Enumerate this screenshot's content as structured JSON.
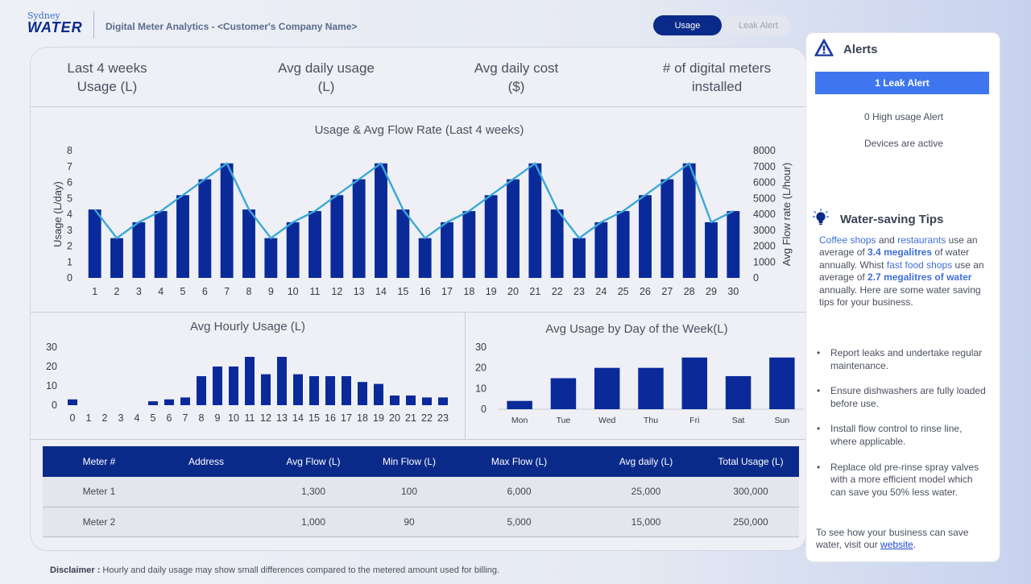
{
  "header": {
    "logo_small": "Sydney",
    "logo_main": "WATER",
    "title": "Digital Meter Analytics - <Customer's Company Name>",
    "tabs": [
      {
        "label": "Usage",
        "active": true
      },
      {
        "label": "Leak Alert",
        "active": false
      }
    ]
  },
  "kpis": [
    {
      "line1": "Last 4 weeks",
      "line2": "Usage (L)"
    },
    {
      "line1": "Avg daily usage",
      "line2": "(L)"
    },
    {
      "line1": "Avg daily cost",
      "line2": "($)"
    },
    {
      "line1": "# of digital meters",
      "line2": "installed"
    }
  ],
  "chart_data": [
    {
      "type": "bar",
      "title": "Usage & Avg Flow Rate (Last 4 weeks)",
      "xlabel": "",
      "ylabel": "Usage (L/day)",
      "y2label": "Avg Flow rate (L/hour)",
      "ylim": [
        0,
        8
      ],
      "y2lim": [
        0,
        8000
      ],
      "yticks": [
        0,
        1,
        2,
        3,
        4,
        5,
        6,
        7,
        8
      ],
      "y2ticks": [
        0,
        1000,
        2000,
        3000,
        4000,
        5000,
        6000,
        7000,
        8000
      ],
      "categories": [
        "1",
        "2",
        "3",
        "4",
        "5",
        "6",
        "7",
        "8",
        "9",
        "10",
        "11",
        "12",
        "13",
        "14",
        "15",
        "16",
        "17",
        "18",
        "19",
        "20",
        "21",
        "22",
        "23",
        "24",
        "25",
        "26",
        "27",
        "28",
        "29",
        "30"
      ],
      "series": [
        {
          "name": "Usage (L/day)",
          "type": "bar",
          "color": "#0a2a9a",
          "values": [
            4.3,
            2.5,
            3.5,
            4.2,
            5.2,
            6.2,
            7.2,
            4.3,
            2.5,
            3.5,
            4.2,
            5.2,
            6.2,
            7.2,
            4.3,
            2.5,
            3.5,
            4.2,
            5.2,
            6.2,
            7.2,
            4.3,
            2.5,
            3.5,
            4.2,
            5.2,
            6.2,
            7.2,
            3.5,
            4.2
          ]
        },
        {
          "name": "Avg Flow rate (L/hour)",
          "type": "line",
          "axis": "right",
          "color": "#3aa8d8",
          "values": [
            4300,
            2500,
            3500,
            4200,
            5200,
            6200,
            7200,
            4300,
            2500,
            3500,
            4200,
            5200,
            6200,
            7200,
            4300,
            2500,
            3500,
            4200,
            5200,
            6200,
            7200,
            4300,
            2500,
            3500,
            4200,
            5200,
            6200,
            7200,
            3500,
            4200
          ]
        }
      ]
    },
    {
      "type": "bar",
      "title": "Avg Hourly Usage (L)",
      "xlabel": "",
      "ylabel": "",
      "ylim": [
        0,
        30
      ],
      "yticks": [
        0,
        10,
        20,
        30
      ],
      "categories": [
        "0",
        "1",
        "2",
        "3",
        "4",
        "5",
        "6",
        "7",
        "8",
        "9",
        "10",
        "11",
        "12",
        "13",
        "14",
        "15",
        "16",
        "17",
        "18",
        "19",
        "20",
        "21",
        "22",
        "23"
      ],
      "values": [
        3,
        0,
        0,
        0,
        0,
        2,
        3,
        4,
        15,
        20,
        20,
        25,
        16,
        25,
        16,
        15,
        15,
        15,
        12,
        11,
        5,
        5,
        4,
        4
      ],
      "color": "#0a2a9a"
    },
    {
      "type": "bar",
      "title": "Avg Usage by Day of the Week(L)",
      "xlabel": "",
      "ylabel": "",
      "ylim": [
        0,
        30
      ],
      "yticks": [
        0,
        10,
        20,
        30
      ],
      "categories": [
        "Mon",
        "Tue",
        "Wed",
        "Thu",
        "Fri",
        "Sat",
        "Sun"
      ],
      "values": [
        4,
        15,
        20,
        20,
        25,
        16,
        25
      ],
      "color": "#0a2a9a"
    }
  ],
  "table": {
    "headers": [
      "Meter #",
      "Address",
      "Avg Flow (L)",
      "Min Flow (L)",
      "Max Flow (L)",
      "Avg daily (L)",
      "Total Usage (L)"
    ],
    "rows": [
      [
        "Meter 1",
        "",
        "1,300",
        "100",
        "6,000",
        "25,000",
        "300,000"
      ],
      [
        "Meter 2",
        "",
        "1,000",
        "90",
        "5,000",
        "15,000",
        "250,000"
      ]
    ]
  },
  "disclaimer": {
    "label": "Disclaimer :",
    "text": " Hourly and daily usage may show small differences compared to the metered amount used for billing."
  },
  "alerts": {
    "title": "Alerts",
    "icon": "warning-triangle-icon",
    "leak_button": "1 Leak Alert",
    "high_usage": "0 High usage Alert",
    "devices": "Devices are active"
  },
  "tips": {
    "title": "Water-saving Tips",
    "icon": "lightbulb-icon",
    "intro": {
      "t1": "Coffee shops",
      "t2": " and ",
      "t3": "restaurants",
      "t4": " use an average of ",
      "t5": "3.4 megalitres",
      "t6": " of water annually. Whist ",
      "t7": "fast food shops",
      "t8": " use an average of ",
      "t9": "2.7 megalitres of water",
      "t10": " annually. Here are some water saving tips for your business."
    },
    "items": [
      "Report leaks and undertake regular maintenance.",
      "Ensure dishwashers are fully loaded before use.",
      "Install flow control to rinse line, where applicable.",
      "Replace old pre-rinse spray valves with a more efficient model which can save you 50% less water."
    ],
    "footer_text": "To see how your business can save water, visit our ",
    "footer_link": "website",
    "footer_end": "."
  },
  "colors": {
    "brand": "#0a2a8a",
    "bar": "#0a2a9a",
    "line": "#3aa8d8",
    "alert_button": "#3f76ef"
  }
}
